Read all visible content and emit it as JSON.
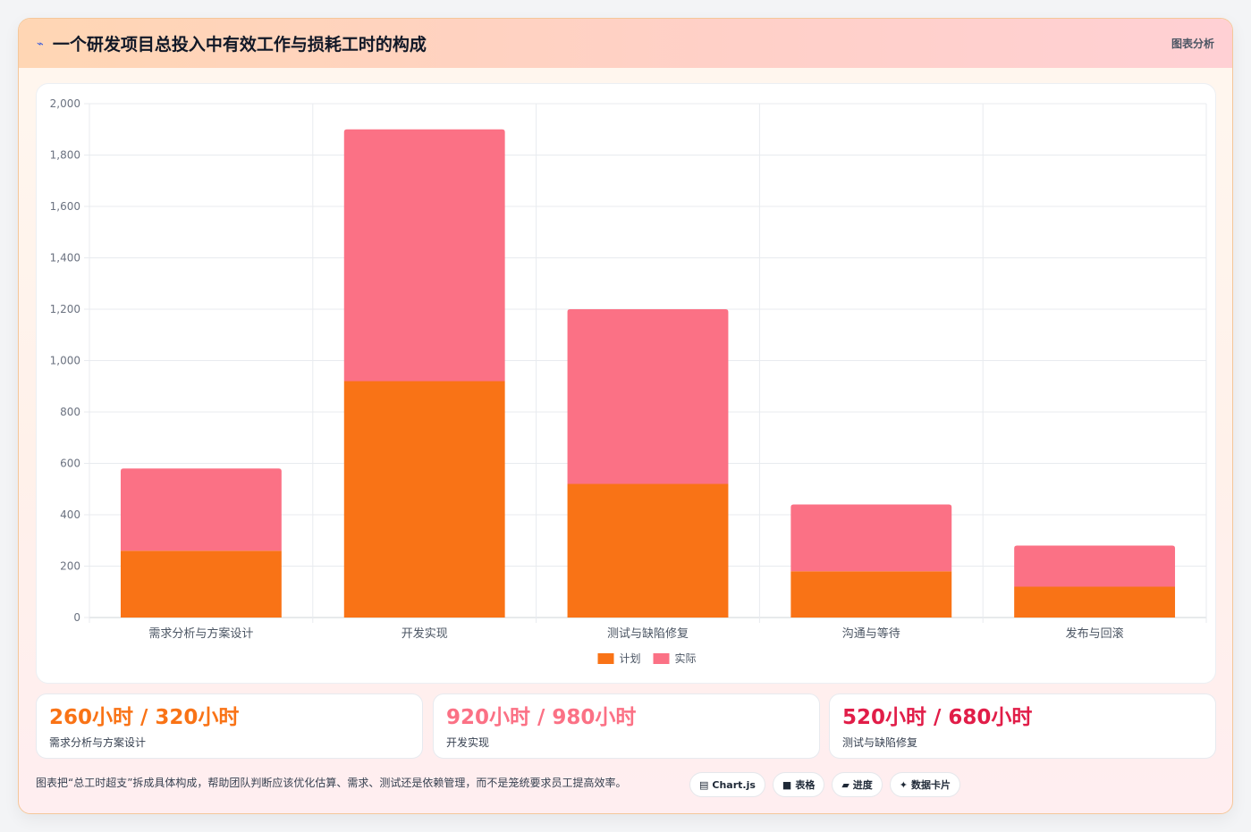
{
  "header": {
    "icon": "lightning-icon",
    "title": "一个研发项目总投入中有效工作与损耗工时的构成",
    "right_label": "图表分析"
  },
  "chart_data": {
    "type": "bar",
    "stacked": true,
    "categories": [
      "需求分析与方案设计",
      "开发实现",
      "测试与缺陷修复",
      "沟通与等待",
      "发布与回滚"
    ],
    "series": [
      {
        "name": "计划",
        "values": [
          260,
          920,
          520,
          180,
          120
        ],
        "color": "#f97316"
      },
      {
        "name": "实际",
        "values": [
          320,
          980,
          680,
          260,
          160
        ],
        "color": "#fb7185"
      }
    ],
    "ylim": [
      0,
      2000
    ],
    "yticks": [
      "0",
      "200",
      "400",
      "600",
      "800",
      "1,000",
      "1,200",
      "1,400",
      "1,600",
      "1,800",
      "2,000"
    ],
    "ytick_values": [
      0,
      200,
      400,
      600,
      800,
      1000,
      1200,
      1400,
      1600,
      1800,
      2000
    ],
    "grid": true,
    "legend": "bottom"
  },
  "stats": [
    {
      "value": "260小时 / 320小时",
      "label": "需求分析与方案设计",
      "color": "#f97316"
    },
    {
      "value": "920小时 / 980小时",
      "label": "开发实现",
      "color": "#fb7185"
    },
    {
      "value": "520小时 / 680小时",
      "label": "测试与缺陷修复",
      "color": "#e11d48"
    }
  ],
  "footer": {
    "note": "图表把“总工时超支”拆成具体构成，帮助团队判断应该优化估算、需求、测试还是依赖管理，而不是笼统要求员工提高效率。",
    "tags": [
      {
        "icon": "▤",
        "icon_name": "chart-icon",
        "label": "Chart.js"
      },
      {
        "icon": "■",
        "icon_name": "table-icon",
        "label": "表格"
      },
      {
        "icon": "▰",
        "icon_name": "progress-icon",
        "label": "进度"
      },
      {
        "icon": "✦",
        "icon_name": "sparkle-icon",
        "label": "数据卡片"
      }
    ]
  }
}
